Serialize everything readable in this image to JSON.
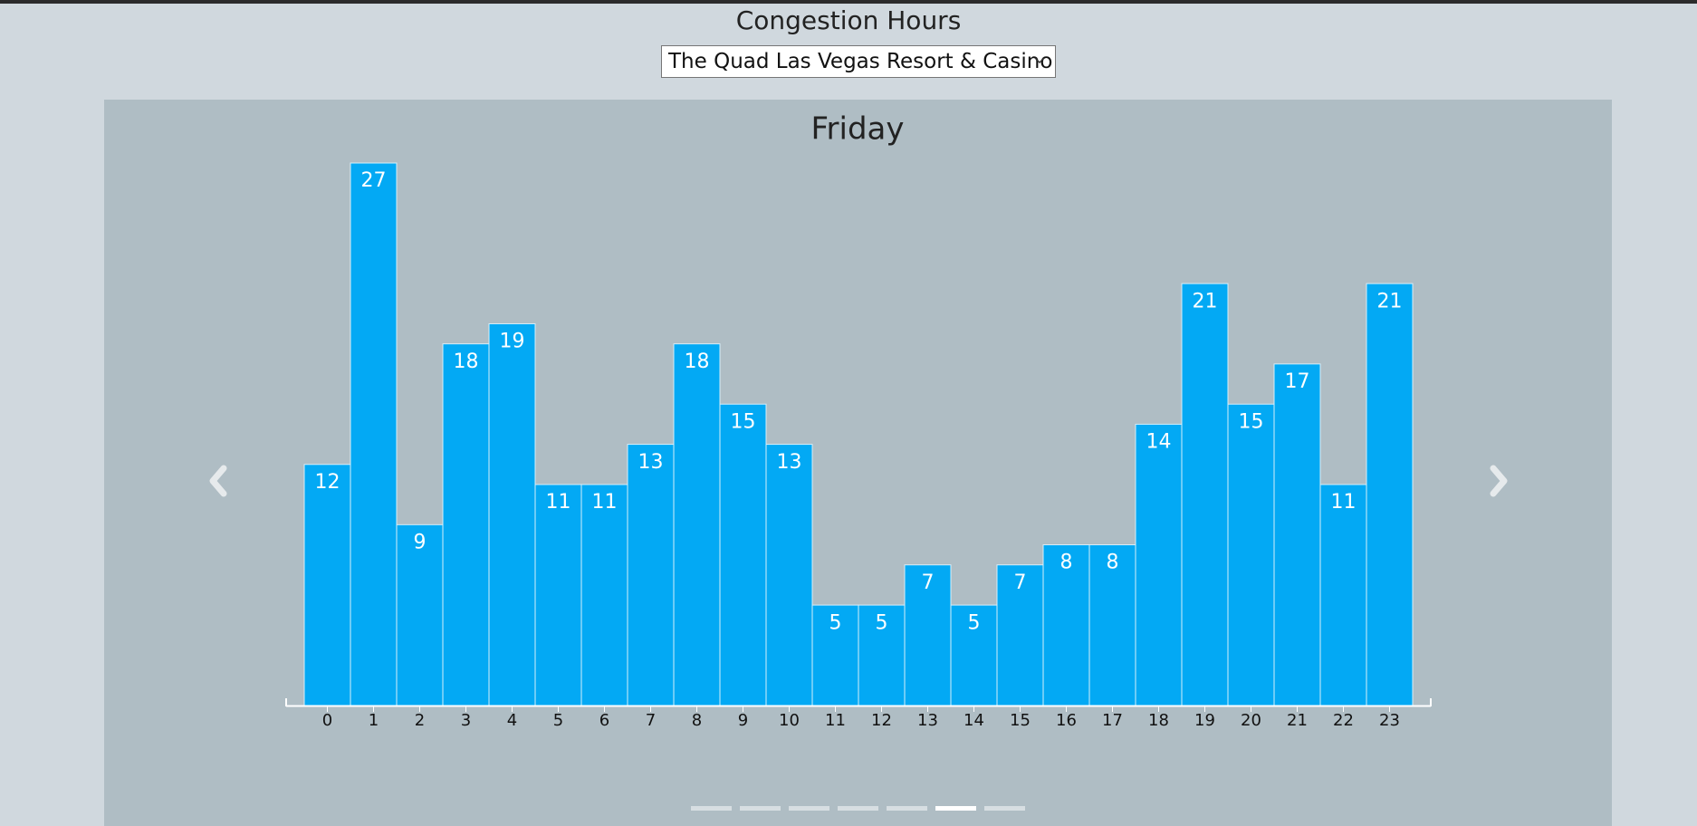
{
  "header": {
    "title": "Congestion Hours"
  },
  "venue_select": {
    "selected": "The Quad Las Vegas Resort & Casino"
  },
  "carousel": {
    "slide_count": 7,
    "active_index": 5,
    "prev_icon": "chevron-left-icon",
    "next_icon": "chevron-right-icon"
  },
  "colors": {
    "bar": "#03a9f4",
    "bar_stroke": "#d6eefa",
    "panel": "#afbdc4",
    "page": "#d0d8de"
  },
  "chart_data": {
    "type": "bar",
    "title": "Friday",
    "xlabel": "",
    "ylabel": "",
    "categories": [
      "0",
      "1",
      "2",
      "3",
      "4",
      "5",
      "6",
      "7",
      "8",
      "9",
      "10",
      "11",
      "12",
      "13",
      "14",
      "15",
      "16",
      "17",
      "18",
      "19",
      "20",
      "21",
      "22",
      "23"
    ],
    "values": [
      12,
      27,
      9,
      18,
      19,
      11,
      11,
      13,
      18,
      15,
      13,
      5,
      5,
      7,
      5,
      7,
      8,
      8,
      14,
      21,
      15,
      17,
      11,
      21
    ],
    "ylim": [
      0,
      27
    ],
    "grid": false,
    "legend": "none",
    "data_labels": "inside-top"
  }
}
